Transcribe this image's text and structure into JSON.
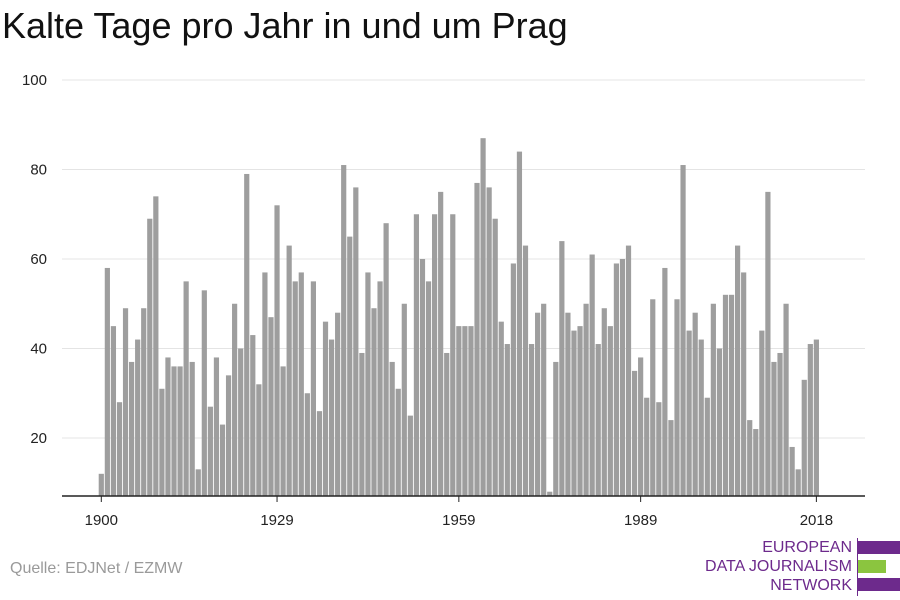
{
  "title": "Kalte Tage pro Jahr in und um Prag",
  "source": "Quelle: EDJNet / EZMW",
  "logo": {
    "line1": "EUROPEAN",
    "line2": "DATA JOURNALISM",
    "line3": "NETWORK",
    "color_primary": "#6d2a8c",
    "color_accent": "#8bc53f"
  },
  "colors": {
    "bar": "#9e9e9e",
    "grid": "#e4e4e4",
    "axis": "#222222"
  },
  "chart_data": {
    "type": "bar",
    "title": "Kalte Tage pro Jahr in und um Prag",
    "xlabel": "",
    "ylabel": "",
    "x_start": 1900,
    "x_end": 2018,
    "xticks": [
      1900,
      1929,
      1959,
      1989,
      2018
    ],
    "yticks": [
      20,
      40,
      60,
      80,
      100
    ],
    "ylim": [
      7,
      100
    ],
    "grid": true,
    "legend": "none",
    "values": [
      12,
      58,
      45,
      28,
      49,
      37,
      42,
      49,
      69,
      74,
      31,
      38,
      36,
      36,
      55,
      37,
      13,
      53,
      27,
      38,
      23,
      34,
      50,
      40,
      79,
      43,
      32,
      57,
      47,
      72,
      36,
      63,
      55,
      57,
      30,
      55,
      26,
      46,
      42,
      48,
      81,
      65,
      76,
      39,
      57,
      49,
      55,
      68,
      37,
      31,
      50,
      25,
      70,
      60,
      55,
      70,
      75,
      39,
      70,
      45,
      45,
      45,
      77,
      87,
      76,
      69,
      46,
      41,
      59,
      84,
      63,
      41,
      48,
      50,
      8,
      37,
      64,
      48,
      44,
      45,
      50,
      61,
      41,
      49,
      45,
      59,
      60,
      63,
      35,
      38,
      29,
      51,
      28,
      58,
      24,
      51,
      81,
      44,
      48,
      42,
      29,
      50,
      40,
      52,
      52,
      63,
      57,
      24,
      22,
      44,
      75,
      37,
      39,
      50,
      18,
      13,
      33,
      41,
      42
    ]
  }
}
